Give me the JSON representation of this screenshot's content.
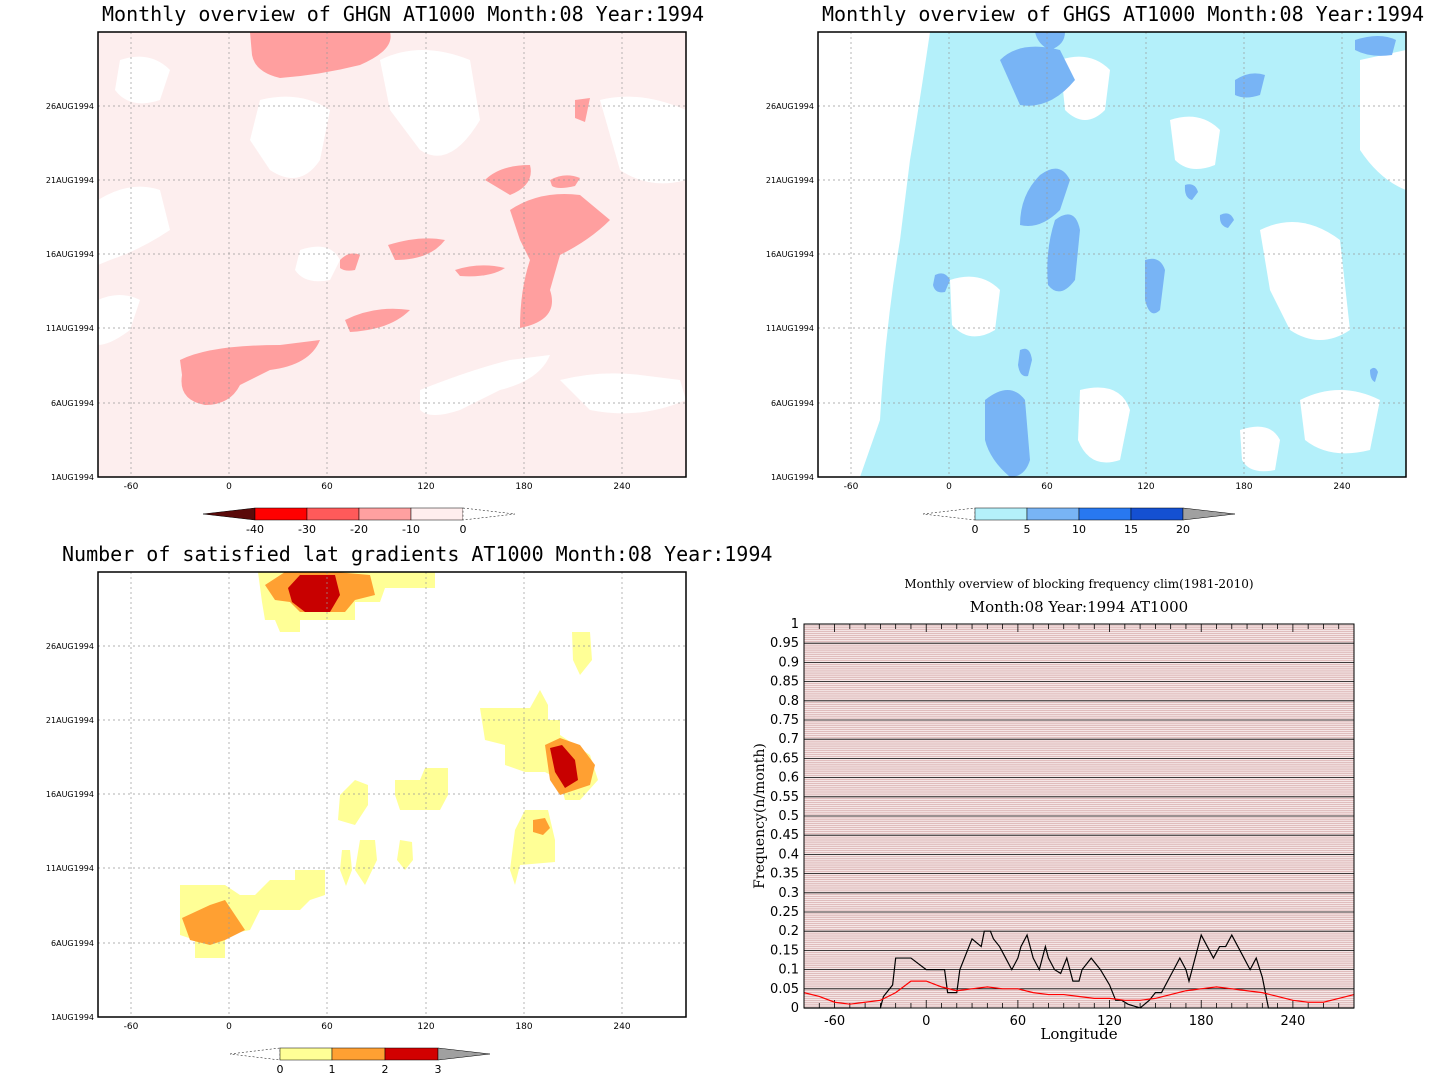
{
  "chart_data": [
    {
      "type": "heatmap",
      "title": "Monthly overview of GHGN AT1000 Month:08 Year:1994",
      "x_ticks": [
        "-60",
        "0",
        "60",
        "120",
        "180",
        "240"
      ],
      "y_ticks": [
        "1AUG1994",
        "6AUG1994",
        "11AUG1994",
        "16AUG1994",
        "21AUG1994",
        "26AUG1994"
      ],
      "colorbar_ticks": [
        "-40",
        "-30",
        "-20",
        "-10",
        "0"
      ],
      "colorbar_colors": [
        "#5a0a0a",
        "#ff0000",
        "#ff5a5a",
        "#ffa0a0",
        "#ffeeee"
      ],
      "grid": "dotted"
    },
    {
      "type": "heatmap",
      "title": "Monthly overview of GHGS AT1000 Month:08 Year:1994",
      "x_ticks": [
        "-60",
        "0",
        "60",
        "120",
        "180",
        "240"
      ],
      "y_ticks": [
        "1AUG1994",
        "6AUG1994",
        "11AUG1994",
        "16AUG1994",
        "21AUG1994",
        "26AUG1994"
      ],
      "colorbar_ticks": [
        "0",
        "5",
        "10",
        "15",
        "20"
      ],
      "colorbar_colors": [
        "#b4f0fa",
        "#78b4f5",
        "#2878f0",
        "#1450d2",
        "#a0a0a0"
      ],
      "grid": "dotted"
    },
    {
      "type": "heatmap",
      "title": "Number of satisfied lat gradients AT1000 Month:08 Year:1994",
      "x_ticks": [
        "-60",
        "0",
        "60",
        "120",
        "180",
        "240"
      ],
      "y_ticks": [
        "1AUG1994",
        "6AUG1994",
        "11AUG1994",
        "16AUG1994",
        "21AUG1994",
        "26AUG1994"
      ],
      "colorbar_ticks": [
        "0",
        "1",
        "2",
        "3"
      ],
      "colorbar_colors": [
        "#ffff96",
        "#ffa032",
        "#d20000",
        "#a0a0a0"
      ],
      "grid": "dotted"
    },
    {
      "type": "line",
      "title": "Monthly overview of blocking frequency clim(1981-2010)",
      "subtitle": "Month:08 Year:1994  AT1000",
      "xlabel": "Longitude",
      "ylabel": "Frequency(n/month)",
      "x_ticks": [
        "-60",
        "0",
        "60",
        "120",
        "180",
        "240"
      ],
      "y_ticks": [
        "0",
        "0.05",
        "0.1",
        "0.15",
        "0.2",
        "0.25",
        "0.3",
        "0.35",
        "0.4",
        "0.45",
        "0.5",
        "0.55",
        "0.6",
        "0.65",
        "0.7",
        "0.75",
        "0.8",
        "0.85",
        "0.9",
        "0.95",
        "1"
      ],
      "xlim": [
        -80,
        280
      ],
      "ylim": [
        0,
        1
      ],
      "series": [
        {
          "color": "#000000",
          "x": [
            -80,
            -30,
            -28,
            -22,
            -20,
            -14,
            -10,
            0,
            2,
            8,
            12,
            14,
            16,
            20,
            22,
            28,
            30,
            36,
            38,
            42,
            44,
            48,
            52,
            56,
            60,
            62,
            66,
            70,
            74,
            78,
            80,
            84,
            88,
            92,
            96,
            100,
            102,
            108,
            114,
            120,
            124,
            128,
            132,
            140,
            146,
            150,
            154,
            158,
            162,
            166,
            170,
            172,
            176,
            180,
            184,
            188,
            192,
            196,
            200,
            204,
            208,
            212,
            216,
            220,
            224,
            280
          ],
          "y": [
            0,
            0,
            0.03,
            0.06,
            0.13,
            0.13,
            0.13,
            0.1,
            0.1,
            0.1,
            0.1,
            0.04,
            0.04,
            0.04,
            0.1,
            0.16,
            0.18,
            0.16,
            0.2,
            0.2,
            0.18,
            0.16,
            0.13,
            0.1,
            0.13,
            0.16,
            0.19,
            0.13,
            0.1,
            0.16,
            0.13,
            0.1,
            0.09,
            0.13,
            0.07,
            0.07,
            0.1,
            0.13,
            0.1,
            0.06,
            0.02,
            0.02,
            0.01,
            0,
            0.02,
            0.04,
            0.04,
            0.07,
            0.1,
            0.13,
            0.1,
            0.07,
            0.13,
            0.19,
            0.16,
            0.13,
            0.16,
            0.16,
            0.19,
            0.16,
            0.13,
            0.1,
            0.13,
            0.08,
            0,
            0
          ]
        },
        {
          "color": "#ff0000",
          "x": [
            -80,
            -70,
            -60,
            -50,
            -40,
            -30,
            -20,
            -10,
            0,
            10,
            20,
            30,
            40,
            50,
            60,
            70,
            80,
            90,
            100,
            110,
            120,
            130,
            140,
            150,
            160,
            170,
            180,
            190,
            200,
            210,
            220,
            230,
            240,
            250,
            260,
            270,
            280
          ],
          "y": [
            0.04,
            0.03,
            0.015,
            0.01,
            0.015,
            0.02,
            0.04,
            0.07,
            0.07,
            0.055,
            0.045,
            0.05,
            0.055,
            0.05,
            0.05,
            0.04,
            0.035,
            0.035,
            0.03,
            0.025,
            0.025,
            0.02,
            0.02,
            0.025,
            0.035,
            0.045,
            0.05,
            0.055,
            0.05,
            0.045,
            0.04,
            0.03,
            0.02,
            0.015,
            0.015,
            0.025,
            0.035
          ]
        }
      ],
      "background_color": "#f5e6e6",
      "grid": "dense horizontal lines"
    }
  ]
}
